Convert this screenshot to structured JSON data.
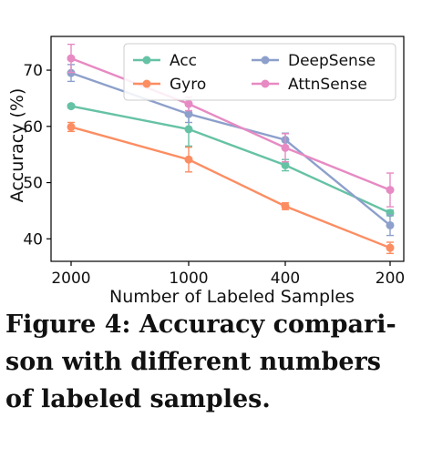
{
  "chart_data": {
    "type": "line",
    "categories": [
      "2000",
      "1000",
      "400",
      "200"
    ],
    "xlabel": "Number of Labeled Samples",
    "ylabel": "Accuracy (%)",
    "ylim": [
      36,
      76
    ],
    "yticks": [
      40,
      50,
      60,
      70
    ],
    "legend_position": "top-right",
    "grid": false,
    "error_bars": true,
    "series": [
      {
        "name": "Acc",
        "color": "#66c2a5",
        "values": [
          63.6,
          59.5,
          53.1,
          44.6
        ],
        "errors": [
          0.3,
          3.0,
          1.0,
          0.5
        ]
      },
      {
        "name": "Gyro",
        "color": "#fc8d62",
        "values": [
          59.9,
          54.1,
          45.8,
          38.4
        ],
        "errors": [
          0.8,
          2.2,
          0.6,
          1.0
        ]
      },
      {
        "name": "DeepSense",
        "color": "#8da0cb",
        "values": [
          69.5,
          62.2,
          57.6,
          42.4
        ],
        "errors": [
          1.5,
          1.5,
          1.2,
          1.8
        ]
      },
      {
        "name": "AttnSense",
        "color": "#e78ac3",
        "values": [
          72.1,
          64.0,
          56.2,
          48.7
        ],
        "errors": [
          2.5,
          1.2,
          2.5,
          3.0
        ]
      }
    ]
  },
  "caption": {
    "lines": [
      "Figure 4: Accuracy compari-",
      "son with different numbers",
      "of labeled samples."
    ]
  }
}
